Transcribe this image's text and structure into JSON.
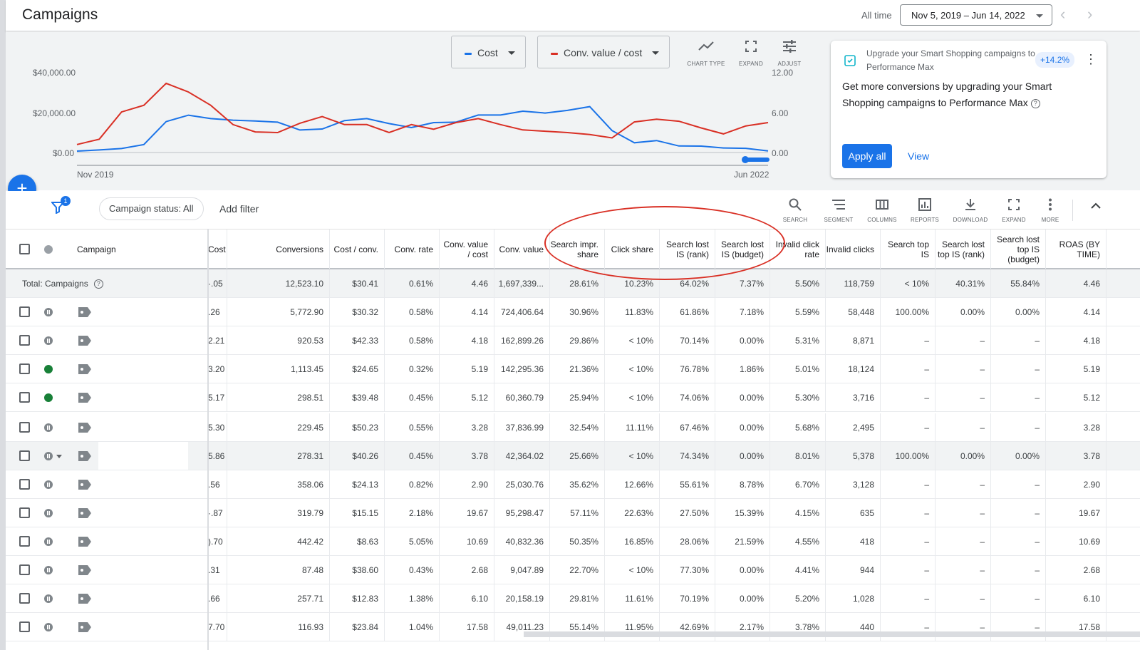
{
  "header": {
    "title": "Campaigns",
    "all_time_label": "All time",
    "date_range": "Nov 5, 2019 – Jun 14, 2022"
  },
  "chart": {
    "metric1_label": "Cost",
    "metric2_label": "Conv. value / cost",
    "tools": {
      "chart_type": "CHART TYPE",
      "expand": "EXPAND",
      "adjust": "ADJUST"
    },
    "colors": {
      "cost": "#1a73e8",
      "conv_value_cost": "#d93025"
    }
  },
  "chart_data": {
    "type": "line",
    "x_start_label": "Nov 2019",
    "x_end_label": "Jun 2022",
    "left_axis": {
      "ticks": [
        "$40,000.00",
        "$20,000.00",
        "$0.00"
      ],
      "range": [
        0,
        40000
      ]
    },
    "right_axis": {
      "ticks": [
        "12.00",
        "6.00",
        "0.00"
      ],
      "range": [
        0,
        12
      ]
    },
    "series": [
      {
        "name": "Cost",
        "axis": "left",
        "values": [
          700,
          1300,
          2000,
          4000,
          15500,
          18700,
          17000,
          16200,
          15800,
          15200,
          11300,
          11800,
          16000,
          17000,
          14500,
          12500,
          15000,
          15200,
          18800,
          18800,
          20700,
          19800,
          21100,
          23000,
          11000,
          4900,
          6000,
          3300,
          3200,
          2300,
          2100,
          800
        ]
      },
      {
        "name": "Conv. value / cost",
        "axis": "left_scaled_right",
        "values": [
          1.2,
          2.0,
          6.1,
          7.1,
          10.4,
          9.1,
          7.1,
          4.2,
          3.1,
          3.0,
          4.4,
          5.4,
          4.2,
          4.2,
          3.0,
          4.2,
          3.5,
          4.5,
          5.1,
          4.2,
          3.4,
          3.2,
          3.0,
          2.7,
          2.2,
          4.6,
          5.0,
          4.7,
          3.7,
          2.8,
          4.0,
          4.5
        ]
      }
    ]
  },
  "recommendation": {
    "subtitle": "Upgrade your Smart Shopping campaigns to Performance Max",
    "badge": "+14.2%",
    "title": "Get more conversions by upgrading your Smart Shopping campaigns to Performance Max",
    "apply_label": "Apply all",
    "view_label": "View"
  },
  "filter_bar": {
    "filter_count": "1",
    "status_chip": "Campaign status: All",
    "add_filter": "Add filter",
    "tools": {
      "search": "SEARCH",
      "segment": "SEGMENT",
      "columns": "COLUMNS",
      "reports": "REPORTS",
      "download": "DOWNLOAD",
      "expand": "EXPAND",
      "more": "MORE"
    }
  },
  "table": {
    "campaign_header": "Campaign",
    "total_label": "Total: Campaigns",
    "columns": [
      "Cost",
      "Conversions",
      "Cost / conv.",
      "Conv. rate",
      "Conv. value / cost",
      "Conv. value",
      "Search impr. share",
      "Click share",
      "Search lost IS (rank)",
      "Search lost IS (budget)",
      "Invalid click rate",
      "Invalid clicks",
      "Search top IS",
      "Search lost top IS (rank)",
      "Search lost top IS (budget)",
      "ROAS (BY TIME)"
    ],
    "total_row": [
      "·.05",
      "12,523.10",
      "$30.41",
      "0.61%",
      "4.46",
      "1,697,339...",
      "28.61%",
      "10.23%",
      "64.02%",
      "7.37%",
      "5.50%",
      "118,759",
      "< 10%",
      "40.31%",
      "55.84%",
      "4.46"
    ],
    "rows": [
      {
        "status": "paused",
        "cells": [
          ".26",
          "5,772.90",
          "$30.32",
          "0.58%",
          "4.14",
          "724,406.64",
          "30.96%",
          "11.83%",
          "61.86%",
          "7.18%",
          "5.59%",
          "58,448",
          "100.00%",
          "0.00%",
          "0.00%",
          "4.14"
        ]
      },
      {
        "status": "paused",
        "cells": [
          "2.21",
          "920.53",
          "$42.33",
          "0.58%",
          "4.18",
          "162,899.26",
          "29.86%",
          "< 10%",
          "70.14%",
          "0.00%",
          "5.31%",
          "8,871",
          "–",
          "–",
          "–",
          "4.18"
        ]
      },
      {
        "status": "enabled",
        "cells": [
          "3.20",
          "1,113.45",
          "$24.65",
          "0.32%",
          "5.19",
          "142,295.36",
          "21.36%",
          "< 10%",
          "76.78%",
          "1.86%",
          "5.01%",
          "18,124",
          "–",
          "–",
          "–",
          "5.19"
        ]
      },
      {
        "status": "enabled",
        "cells": [
          "5.17",
          "298.51",
          "$39.48",
          "0.45%",
          "5.12",
          "60,360.79",
          "25.94%",
          "< 10%",
          "74.06%",
          "0.00%",
          "5.30%",
          "3,716",
          "–",
          "–",
          "–",
          "5.12"
        ]
      },
      {
        "status": "paused",
        "cells": [
          "5.30",
          "229.45",
          "$50.23",
          "0.55%",
          "3.28",
          "37,836.99",
          "32.54%",
          "11.11%",
          "67.46%",
          "0.00%",
          "5.68%",
          "2,495",
          "–",
          "–",
          "–",
          "3.28"
        ]
      },
      {
        "status": "paused-menu",
        "cells": [
          "5.86",
          "278.31",
          "$40.26",
          "0.45%",
          "3.78",
          "42,364.02",
          "25.66%",
          "< 10%",
          "74.34%",
          "0.00%",
          "8.01%",
          "5,378",
          "100.00%",
          "0.00%",
          "0.00%",
          "3.78"
        ]
      },
      {
        "status": "paused",
        "cells": [
          ".56",
          "358.06",
          "$24.13",
          "0.82%",
          "2.90",
          "25,030.76",
          "35.62%",
          "12.66%",
          "55.61%",
          "8.78%",
          "6.70%",
          "3,128",
          "–",
          "–",
          "–",
          "2.90"
        ]
      },
      {
        "status": "paused",
        "cells": [
          "·.87",
          "319.79",
          "$15.15",
          "2.18%",
          "19.67",
          "95,298.47",
          "57.11%",
          "22.63%",
          "27.50%",
          "15.39%",
          "4.15%",
          "635",
          "–",
          "–",
          "–",
          "19.67"
        ]
      },
      {
        "status": "paused",
        "cells": [
          ").70",
          "442.42",
          "$8.63",
          "5.05%",
          "10.69",
          "40,832.36",
          "50.35%",
          "16.85%",
          "28.06%",
          "21.59%",
          "4.55%",
          "418",
          "–",
          "–",
          "–",
          "10.69"
        ]
      },
      {
        "status": "paused",
        "cells": [
          ".31",
          "87.48",
          "$38.60",
          "0.43%",
          "2.68",
          "9,047.89",
          "22.70%",
          "< 10%",
          "77.30%",
          "0.00%",
          "4.41%",
          "944",
          "–",
          "–",
          "–",
          "2.68"
        ]
      },
      {
        "status": "paused",
        "cells": [
          ".66",
          "257.71",
          "$12.83",
          "1.38%",
          "6.10",
          "20,158.19",
          "29.81%",
          "11.61%",
          "70.19%",
          "0.00%",
          "5.20%",
          "1,028",
          "–",
          "–",
          "–",
          "6.10"
        ]
      },
      {
        "status": "paused",
        "cells": [
          "7.70",
          "116.93",
          "$23.84",
          "1.04%",
          "17.58",
          "49,011.23",
          "55.14%",
          "11.95%",
          "42.69%",
          "2.17%",
          "3.78%",
          "440",
          "–",
          "–",
          "–",
          "17.58"
        ]
      }
    ]
  }
}
